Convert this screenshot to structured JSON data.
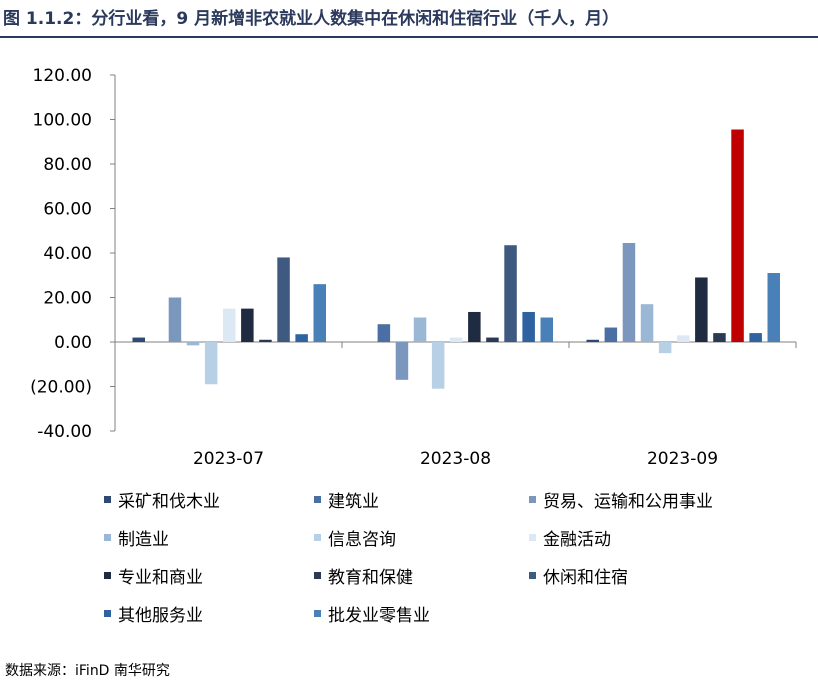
{
  "title": "图 1.1.2：分行业看，9 月新增非农就业人数集中在休闲和住宿行业（千人，月）",
  "source": "数据来源：iFinD 南华研究",
  "chart_data": {
    "type": "bar",
    "categories": [
      "2023-07",
      "2023-08",
      "2023-09"
    ],
    "ylim": [
      -40,
      120
    ],
    "yticks": [
      "120.00",
      "100.00",
      "80.00",
      "60.00",
      "40.00",
      "20.00",
      "0.00",
      "(20.00)",
      "-40.00"
    ],
    "ytick_values": [
      120,
      100,
      80,
      60,
      40,
      20,
      0,
      -20,
      -40
    ],
    "highlight": {
      "category": "2023-09",
      "series": "休闲和住宿",
      "color": "#c00000"
    },
    "series": [
      {
        "name": "采矿和伐木业",
        "color": "#2e4a73",
        "values": [
          2,
          0,
          1
        ]
      },
      {
        "name": "建筑业",
        "color": "#4a6fa5",
        "values": [
          0,
          8,
          6.5
        ]
      },
      {
        "name": "贸易、运输和公用事业",
        "color": "#7b97bd",
        "values": [
          20,
          -17,
          44.5
        ]
      },
      {
        "name": "制造业",
        "color": "#9ab7d6",
        "values": [
          -1.5,
          11,
          17
        ]
      },
      {
        "name": "信息咨询",
        "color": "#b8d0e6",
        "values": [
          -19,
          -21,
          -5
        ]
      },
      {
        "name": "金融活动",
        "color": "#dce8f4",
        "values": [
          15,
          2,
          3
        ]
      },
      {
        "name": "专业和商业",
        "color": "#1f2b40",
        "values": [
          15,
          13.5,
          29
        ]
      },
      {
        "name": "教育和保健",
        "color": "#2a3a56",
        "values": [
          1,
          2,
          4
        ]
      },
      {
        "name": "休闲和住宿",
        "color": "#3e5a80",
        "values": [
          38,
          43.5,
          95.5
        ]
      },
      {
        "name": "其他服务业",
        "color": "#2f62a0",
        "values": [
          3.5,
          13.5,
          4
        ]
      },
      {
        "name": "批发业零售业",
        "color": "#4a80b8",
        "values": [
          26,
          11,
          31
        ]
      }
    ]
  }
}
